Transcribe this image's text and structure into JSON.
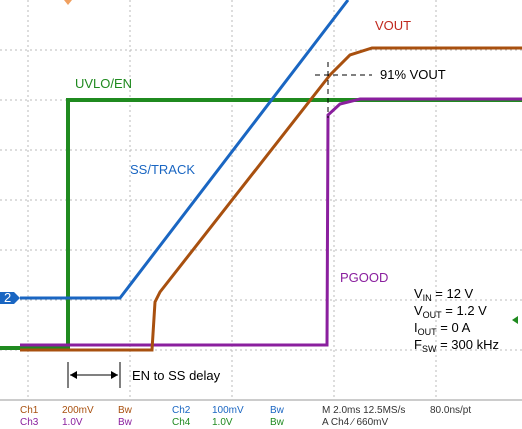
{
  "trace_labels": {
    "uvlo": "UVLO/EN",
    "ss": "SS/TRACK",
    "vout": "VOUT",
    "vout_pct": "91% VOUT",
    "pgood": "PGOOD",
    "delay": "EN to SS delay"
  },
  "conditions": [
    {
      "symbol": "V",
      "sub": "IN",
      "text": " = 12 V"
    },
    {
      "symbol": "V",
      "sub": "OUT",
      "text": " = 1.2 V"
    },
    {
      "symbol": "I",
      "sub": "OUT",
      "text": " = 0 A"
    },
    {
      "symbol": "F",
      "sub": "SW",
      "text": " = 300 kHz"
    }
  ],
  "channel_marker": "2",
  "footer": {
    "row1": [
      "Ch1",
      "200mV",
      "Bw",
      "Ch2",
      "100mV",
      "Bw",
      "M 2.0ms 12.5MS/s",
      "80.0ns/pt"
    ],
    "row2": [
      "Ch3",
      "1.0V",
      "Bw",
      "Ch4",
      "1.0V",
      "Bw",
      "A Ch4 ∕ 660mV"
    ]
  }
}
